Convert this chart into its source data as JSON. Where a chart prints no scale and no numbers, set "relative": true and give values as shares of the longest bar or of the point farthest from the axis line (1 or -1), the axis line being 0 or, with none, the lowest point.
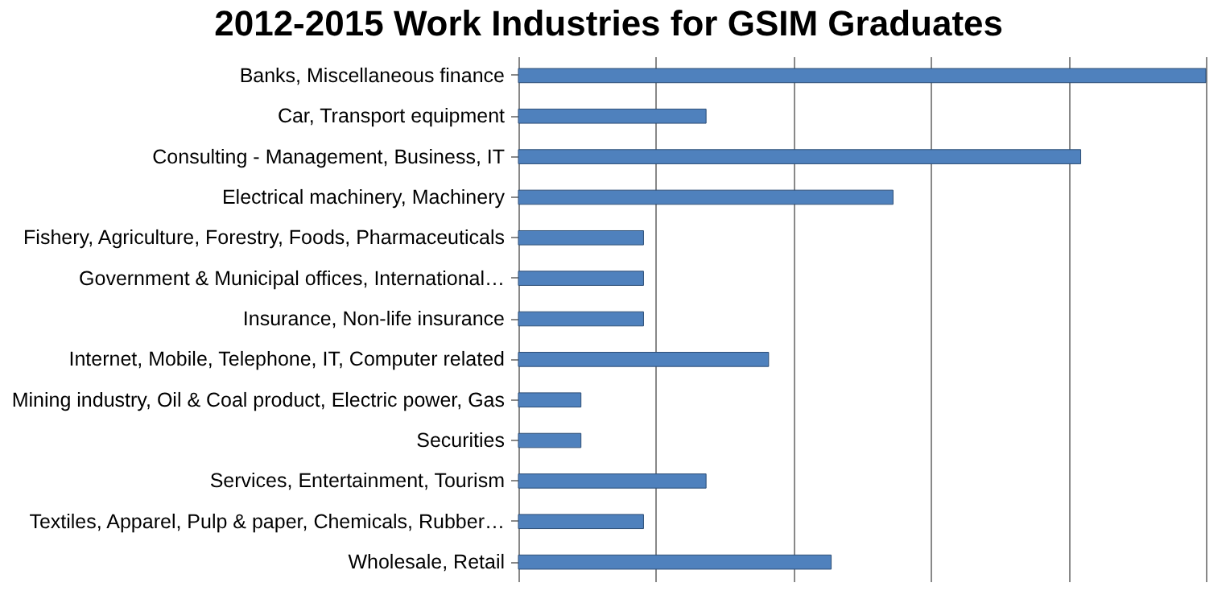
{
  "chart_data": {
    "type": "bar",
    "orientation": "horizontal",
    "relative": true,
    "title": "2012-2015 Work Industries for GSIM Graduates",
    "categories": [
      "Banks, Miscellaneous finance",
      "Car, Transport equipment",
      "Consulting - Management, Business, IT",
      "Electrical machinery, Machinery",
      "Fishery, Agriculture, Forestry, Foods, Pharmaceuticals",
      "Government & Municipal offices, International…",
      "Insurance, Non-life insurance",
      "Internet, Mobile, Telephone, IT, Computer related",
      "Mining industry, Oil & Coal product, Electric power, Gas",
      "Securities",
      "Services, Entertainment, Tourism",
      "Textiles, Apparel, Pulp & paper, Chemicals, Rubber…",
      "Wholesale, Retail"
    ],
    "values": [
      1,
      0.273,
      0.818,
      0.545,
      0.182,
      0.182,
      0.182,
      0.364,
      0.091,
      0.091,
      0.273,
      0.182,
      0.455
    ],
    "color": "#4f81bd",
    "grid": "x"
  }
}
